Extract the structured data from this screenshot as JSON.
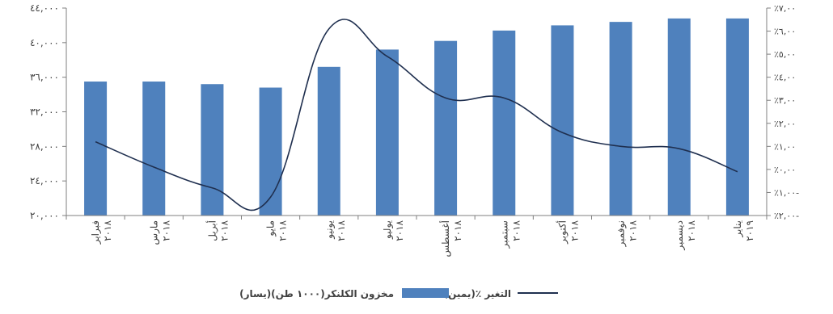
{
  "chart_data": {
    "type": "bar",
    "categories": [
      "فبراير٢٠١٨",
      "مارس٢٠١٨",
      "أبريل٢٠١٨",
      "مايو٢٠١٨",
      "يونيو٢٠١٨",
      "يوليو٢٠١٨",
      "أغسطس٢٠١٨",
      "سبتمبر٢٠١٨",
      "أكتوبر٢٠١٨",
      "نوفمبر٢٠١٨",
      "ديسمبر٢٠١٨",
      "يناير٢٠١٩"
    ],
    "category_lines": [
      [
        "فبراير",
        "٢٠١٨"
      ],
      [
        "مارس",
        "٢٠١٨"
      ],
      [
        "أبريل",
        "٢٠١٨"
      ],
      [
        "مايو",
        "٢٠١٨"
      ],
      [
        "يونيو",
        "٢٠١٨"
      ],
      [
        "يوليو",
        "٢٠١٨"
      ],
      [
        "أغسطس",
        "٢٠١٨"
      ],
      [
        "سبتمبر",
        "٢٠١٨"
      ],
      [
        "أكتوبر",
        "٢٠١٨"
      ],
      [
        "نوفمبر",
        "٢٠١٨"
      ],
      [
        "ديسمبر",
        "٢٠١٨"
      ],
      [
        "يناير",
        "٢٠١٩"
      ]
    ],
    "series": [
      {
        "name": "مخزون الكلنكر(١٠٠٠ طن)(يسار)",
        "kind": "bar",
        "axis": "left",
        "color": "#4f81bd",
        "values": [
          35500,
          35500,
          35200,
          34800,
          37200,
          39200,
          40200,
          41400,
          42000,
          42400,
          42800,
          42800
        ]
      },
      {
        "name": "التغير ٪(يمين)",
        "kind": "line",
        "axis": "right",
        "color": "#1f2f4f",
        "values": [
          1.2,
          0.1,
          -0.8,
          -1.2,
          6.1,
          4.9,
          3.1,
          3.1,
          1.6,
          1.0,
          0.9,
          -0.1
        ]
      }
    ],
    "left_axis": {
      "range": [
        20000,
        44000
      ],
      "ticks": [
        20000,
        24000,
        28000,
        32000,
        36000,
        40000,
        44000
      ],
      "tick_labels": [
        "٢٠,٠٠٠",
        "٢٤,٠٠٠",
        "٢٨,٠٠٠",
        "٣٢,٠٠٠",
        "٣٦,٠٠٠",
        "٤٠,٠٠٠",
        "٤٤,٠٠٠"
      ]
    },
    "right_axis": {
      "range": [
        -2,
        7
      ],
      "ticks": [
        -2,
        -1,
        0,
        1,
        2,
        3,
        4,
        5,
        6,
        7
      ],
      "tick_labels": [
        "٪٢,٠٠-",
        "٪١,٠٠-",
        "٪٠,٠٠",
        "٪١,٠٠",
        "٪٢,٠٠",
        "٪٣,٠٠",
        "٪٤,٠٠",
        "٪٥,٠٠",
        "٪٦,٠٠",
        "٪٧,٠٠"
      ]
    },
    "legend_position": "bottom",
    "grid": false
  }
}
